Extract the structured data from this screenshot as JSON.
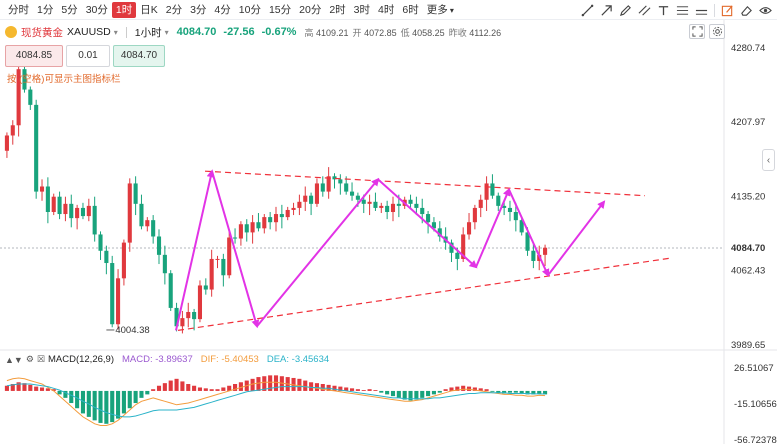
{
  "toolbar": {
    "timeframes": [
      "分时",
      "1分",
      "5分",
      "30分",
      "1时",
      "日K",
      "2分",
      "3分",
      "4分",
      "10分",
      "15分",
      "20分",
      "2时",
      "3时",
      "4时",
      "6时",
      "更多"
    ],
    "active_timeframe": "1时",
    "tools": [
      "trendline-icon",
      "arrow-icon",
      "pen-icon",
      "parallel-lines-icon",
      "text-icon",
      "fib-icon",
      "horizontal-line-icon",
      "edit-icon",
      "eraser-icon",
      "eye-icon"
    ]
  },
  "instrument": {
    "name": "现货黄金",
    "code": "XAUUSD",
    "interval": "1小时",
    "last": "4084.70",
    "change": "-27.56",
    "change_pct": "-0.67%",
    "high_label": "高",
    "high": "4109.21",
    "open_label": "开",
    "open": "4072.85",
    "low_label": "低",
    "low": "4058.25",
    "prev_close_label": "昨收",
    "prev_close": "4112.26"
  },
  "trade": {
    "sell_price": "4084.85",
    "quantity": "0.01",
    "buy_price": "4084.70"
  },
  "hint": "按 (空格)可显示主图指标栏",
  "colors": {
    "up": "#e0393e",
    "down": "#18a37c",
    "annotation_arrow": "#e233e6",
    "trend_dashed": "#f0303a",
    "dif": "#f39c3d",
    "dea": "#2bb3c9"
  },
  "price_axis": {
    "labels": [
      "4280.74",
      "4207.97",
      "4135.20",
      "4062.43",
      "3989.65"
    ],
    "current_price_label": "4084.70"
  },
  "low_annotation": "4004.38",
  "macd": {
    "title": "MACD(12,26,9)",
    "macd_label": "MACD: -3.89637",
    "dif_label": "DIF: -5.40453",
    "dea_label": "DEA: -3.45634",
    "axis_labels": [
      "26.51067",
      "-15.10656",
      "-56.72378"
    ]
  },
  "chart_data": [
    {
      "type": "candlestick",
      "title": "",
      "xlabel": "",
      "ylabel": "",
      "ylim": [
        3989.65,
        4280.74
      ],
      "yticks": [
        3989.65,
        4062.43,
        4135.2,
        4207.97,
        4280.74
      ],
      "current_price": 4084.7,
      "marked_low": 4004.38,
      "close_path": [
        4195,
        4205,
        4260,
        4240,
        4225,
        4140,
        4145,
        4120,
        4135,
        4118,
        4128,
        4114,
        4124,
        4116,
        4126,
        4098,
        4082,
        4070,
        4010,
        4055,
        4090,
        4148,
        4128,
        4106,
        4112,
        4096,
        4078,
        4060,
        4026,
        4008,
        4016,
        4022,
        4015,
        4048,
        4044,
        4074,
        4074,
        4058,
        4095,
        4094,
        4108,
        4100,
        4110,
        4104,
        4115,
        4110,
        4118,
        4115,
        4122,
        4124,
        4130,
        4136,
        4128,
        4148,
        4140,
        4155,
        4152,
        4148,
        4140,
        4136,
        4132,
        4128,
        4130,
        4124,
        4126,
        4120,
        4128,
        4126,
        4132,
        4128,
        4124,
        4118,
        4110,
        4104,
        4096,
        4090,
        4080,
        4074,
        4098,
        4110,
        4124,
        4132,
        4148,
        4136,
        4126,
        4124,
        4120,
        4112,
        4100,
        4082,
        4072,
        4078,
        4085
      ],
      "trend_lines": [
        {
          "style": "dashed",
          "from": [
            0.08,
            4160
          ],
          "to": [
            1.0,
            4136
          ]
        },
        {
          "style": "dashed",
          "from": [
            0.0,
            4004
          ],
          "to": [
            1.0,
            4075
          ]
        }
      ],
      "annotation_arrows": [
        {
          "from": [
            4004
          ],
          "to": [
            4160
          ]
        },
        {
          "from": [
            4160
          ],
          "to": [
            4008
          ]
        },
        {
          "from": [
            4008
          ],
          "to": [
            4152
          ]
        },
        {
          "from": [
            4152
          ],
          "to": [
            4066
          ]
        },
        {
          "from": [
            4066
          ],
          "to": [
            4142
          ]
        },
        {
          "from": [
            4142
          ],
          "to": [
            4058
          ]
        },
        {
          "from": [
            4058
          ],
          "to": [
            4130
          ]
        }
      ]
    },
    {
      "type": "bar",
      "title": "MACD(12,26,9)",
      "ylim": [
        -56.72378,
        26.51067
      ],
      "yticks": [
        -56.72378,
        -15.10656,
        26.51067
      ],
      "histogram": [
        6,
        8,
        10,
        9,
        7,
        5,
        4,
        3,
        2,
        -4,
        -8,
        -14,
        -20,
        -26,
        -30,
        -34,
        -37,
        -38,
        -36,
        -32,
        -26,
        -20,
        -14,
        -8,
        -4,
        2,
        6,
        9,
        12,
        14,
        11,
        8,
        6,
        4,
        3,
        2,
        2,
        4,
        6,
        8,
        10,
        12,
        14,
        16,
        17,
        18,
        18,
        17,
        16,
        15,
        14,
        12,
        10,
        9,
        8,
        7,
        6,
        5,
        4,
        3,
        2,
        1,
        2,
        1,
        -2,
        -4,
        -6,
        -8,
        -10,
        -11,
        -10,
        -8,
        -6,
        -4,
        -2,
        2,
        4,
        5,
        6,
        5,
        4,
        3,
        2,
        -1,
        -2,
        -3,
        -2,
        -2,
        -3,
        -4,
        -4,
        -3,
        -4
      ],
      "dif": [
        12,
        14,
        15,
        14,
        12,
        10,
        8,
        4,
        0,
        -6,
        -12,
        -18,
        -24,
        -30,
        -34,
        -38,
        -40,
        -40,
        -38,
        -34,
        -28,
        -22,
        -16,
        -12,
        -10,
        -8,
        -10,
        -12,
        -14,
        -16,
        -15,
        -14,
        -12,
        -10,
        -8,
        -6,
        -4,
        -2,
        0,
        2,
        4,
        6,
        8,
        9,
        10,
        10,
        10,
        9,
        8,
        7,
        6,
        5,
        4,
        3,
        2,
        1,
        0,
        -1,
        -2,
        -3,
        -4,
        -5,
        -6,
        -7,
        -8,
        -9,
        -10,
        -11,
        -12,
        -12,
        -11,
        -10,
        -8,
        -6,
        -4,
        -2,
        0,
        1,
        2,
        2,
        1,
        0,
        -1,
        -2,
        -3,
        -4,
        -4,
        -5,
        -5,
        -6,
        -6,
        -5,
        -5.4
      ],
      "dea": [
        6,
        7,
        8,
        8,
        8,
        7,
        6,
        5,
        3,
        1,
        -2,
        -5,
        -8,
        -12,
        -15,
        -19,
        -22,
        -25,
        -27,
        -29,
        -30,
        -30,
        -29,
        -27,
        -25,
        -23,
        -22,
        -22,
        -22,
        -22,
        -21,
        -20,
        -19,
        -17,
        -15,
        -13,
        -11,
        -9,
        -7,
        -5,
        -3,
        -1,
        0,
        1,
        2,
        3,
        4,
        5,
        5,
        5,
        5,
        5,
        4,
        4,
        3,
        3,
        2,
        1,
        0,
        -1,
        -2,
        -3,
        -4,
        -5,
        -6,
        -7,
        -8,
        -8,
        -9,
        -9,
        -9,
        -9,
        -9,
        -8,
        -8,
        -7,
        -6,
        -5,
        -4,
        -3,
        -3,
        -2,
        -2,
        -2,
        -2,
        -2,
        -3,
        -3,
        -3,
        -3,
        -3.4,
        -3.4,
        -3.5
      ]
    }
  ]
}
